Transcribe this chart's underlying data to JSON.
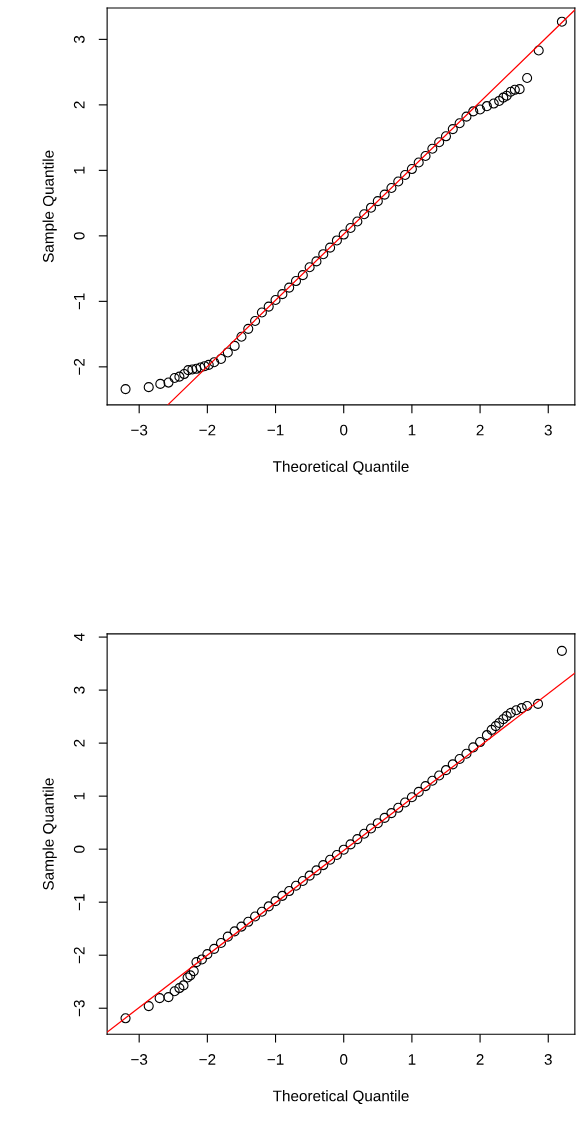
{
  "chart_data": [
    {
      "type": "scatter",
      "xlabel": "Theoretical Quantile",
      "ylabel": "Sample Quantile",
      "xlim": [
        -3.47,
        3.39
      ],
      "ylim": [
        -2.58,
        3.48
      ],
      "xticks": [
        -3,
        -2,
        -1,
        0,
        1,
        2,
        3
      ],
      "yticks": [
        -2,
        -1,
        0,
        1,
        2,
        3
      ],
      "series": [
        {
          "marker": "circle",
          "color": "#000000",
          "x": [
            -3.2,
            -2.86,
            -2.69,
            -2.57,
            -2.48,
            -2.41,
            -2.34,
            -2.28,
            -2.22,
            -2.16,
            -2.1,
            -2.04,
            -1.98,
            -1.9,
            -1.8,
            -1.7,
            -1.6,
            -1.5,
            -1.4,
            -1.3,
            -1.2,
            -1.1,
            -1.0,
            -0.9,
            -0.8,
            -0.7,
            -0.6,
            -0.5,
            -0.4,
            -0.3,
            -0.2,
            -0.1,
            0.0,
            0.1,
            0.2,
            0.3,
            0.4,
            0.5,
            0.6,
            0.7,
            0.8,
            0.9,
            1.0,
            1.1,
            1.2,
            1.3,
            1.4,
            1.5,
            1.6,
            1.7,
            1.8,
            1.9,
            2.0,
            2.1,
            2.2,
            2.28,
            2.34,
            2.39,
            2.45,
            2.51,
            2.58,
            2.69,
            2.86,
            3.2
          ],
          "values": [
            -2.34,
            -2.31,
            -2.26,
            -2.24,
            -2.17,
            -2.15,
            -2.11,
            -2.05,
            -2.04,
            -2.03,
            -2.01,
            -1.99,
            -1.97,
            -1.93,
            -1.88,
            -1.78,
            -1.68,
            -1.54,
            -1.42,
            -1.3,
            -1.17,
            -1.08,
            -0.98,
            -0.89,
            -0.79,
            -0.69,
            -0.6,
            -0.48,
            -0.39,
            -0.28,
            -0.18,
            -0.07,
            0.02,
            0.12,
            0.22,
            0.33,
            0.43,
            0.53,
            0.63,
            0.73,
            0.83,
            0.93,
            1.02,
            1.12,
            1.22,
            1.33,
            1.43,
            1.52,
            1.63,
            1.72,
            1.82,
            1.9,
            1.93,
            1.98,
            2.02,
            2.06,
            2.11,
            2.14,
            2.2,
            2.23,
            2.24,
            2.41,
            2.83,
            3.27
          ]
        },
        {
          "type": "line",
          "color": "#ff0000",
          "x": [
            -2.58,
            3.39
          ],
          "values": [
            -2.58,
            3.45
          ]
        }
      ]
    },
    {
      "type": "scatter",
      "xlabel": "Theoretical Quantile",
      "ylabel": "Sample Quantile",
      "xlim": [
        -3.47,
        3.39
      ],
      "ylim": [
        -3.49,
        4.06
      ],
      "xticks": [
        -3,
        -2,
        -1,
        0,
        1,
        2,
        3
      ],
      "yticks": [
        -3,
        -2,
        -1,
        0,
        1,
        2,
        3,
        4
      ],
      "series": [
        {
          "marker": "circle",
          "color": "#000000",
          "x": [
            -3.2,
            -2.86,
            -2.7,
            -2.57,
            -2.48,
            -2.41,
            -2.35,
            -2.29,
            -2.25,
            -2.2,
            -2.16,
            -2.08,
            -2.0,
            -1.9,
            -1.8,
            -1.7,
            -1.6,
            -1.5,
            -1.4,
            -1.3,
            -1.2,
            -1.1,
            -1.0,
            -0.9,
            -0.8,
            -0.7,
            -0.6,
            -0.5,
            -0.4,
            -0.3,
            -0.2,
            -0.1,
            0.0,
            0.1,
            0.2,
            0.3,
            0.4,
            0.5,
            0.6,
            0.7,
            0.8,
            0.9,
            1.0,
            1.1,
            1.2,
            1.3,
            1.4,
            1.5,
            1.6,
            1.7,
            1.8,
            1.9,
            2.0,
            2.1,
            2.17,
            2.23,
            2.28,
            2.34,
            2.39,
            2.45,
            2.53,
            2.61,
            2.69,
            2.85,
            3.2
          ],
          "values": [
            -3.19,
            -2.96,
            -2.81,
            -2.79,
            -2.68,
            -2.62,
            -2.57,
            -2.42,
            -2.38,
            -2.3,
            -2.13,
            -2.08,
            -1.98,
            -1.88,
            -1.77,
            -1.65,
            -1.55,
            -1.46,
            -1.37,
            -1.27,
            -1.18,
            -1.08,
            -0.98,
            -0.88,
            -0.79,
            -0.69,
            -0.6,
            -0.5,
            -0.4,
            -0.3,
            -0.2,
            -0.11,
            -0.01,
            0.09,
            0.19,
            0.29,
            0.39,
            0.49,
            0.59,
            0.68,
            0.78,
            0.88,
            0.98,
            1.08,
            1.19,
            1.29,
            1.39,
            1.49,
            1.6,
            1.7,
            1.8,
            1.92,
            2.02,
            2.15,
            2.25,
            2.32,
            2.38,
            2.45,
            2.51,
            2.57,
            2.62,
            2.66,
            2.7,
            2.74,
            3.74
          ]
        },
        {
          "type": "line",
          "color": "#ff0000",
          "x": [
            -3.47,
            3.39
          ],
          "values": [
            -3.45,
            3.32
          ]
        }
      ]
    }
  ]
}
